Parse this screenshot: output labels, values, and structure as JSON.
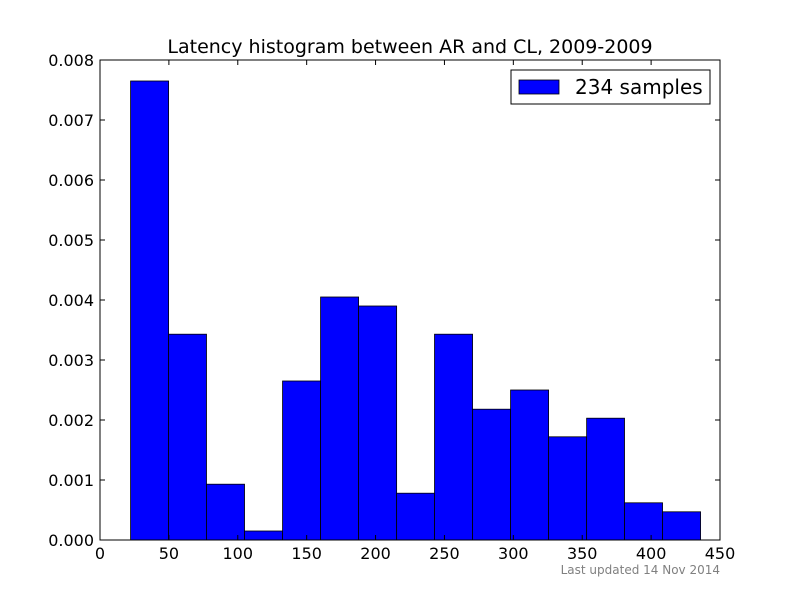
{
  "chart_data": {
    "type": "bar",
    "title": "Latency histogram between AR and CL, 2009-2009",
    "xlabel": "",
    "ylabel": "",
    "xlim": [
      0,
      450
    ],
    "ylim": [
      0,
      0.008
    ],
    "x_ticks": [
      "0",
      "50",
      "100",
      "150",
      "200",
      "250",
      "300",
      "350",
      "400",
      "450"
    ],
    "y_ticks": [
      "0.000",
      "0.001",
      "0.002",
      "0.003",
      "0.004",
      "0.005",
      "0.006",
      "0.007",
      "0.008"
    ],
    "bins": [
      {
        "start": 22.2,
        "end": 49.8,
        "value": 0.00765
      },
      {
        "start": 49.8,
        "end": 77.3,
        "value": 0.00343
      },
      {
        "start": 77.3,
        "end": 104.9,
        "value": 0.00093
      },
      {
        "start": 104.9,
        "end": 132.5,
        "value": 0.00015
      },
      {
        "start": 132.5,
        "end": 160.1,
        "value": 0.00265
      },
      {
        "start": 160.1,
        "end": 187.7,
        "value": 0.00405
      },
      {
        "start": 187.7,
        "end": 215.3,
        "value": 0.0039
      },
      {
        "start": 215.3,
        "end": 242.8,
        "value": 0.00078
      },
      {
        "start": 242.8,
        "end": 270.4,
        "value": 0.00343
      },
      {
        "start": 270.4,
        "end": 298.0,
        "value": 0.00218
      },
      {
        "start": 298.0,
        "end": 325.6,
        "value": 0.0025
      },
      {
        "start": 325.6,
        "end": 353.2,
        "value": 0.00172
      },
      {
        "start": 353.2,
        "end": 380.7,
        "value": 0.00203
      },
      {
        "start": 380.7,
        "end": 408.3,
        "value": 0.00062
      },
      {
        "start": 408.3,
        "end": 435.9,
        "value": 0.00047
      }
    ],
    "bar_color": "#0000ff",
    "legend": {
      "label": "234 samples",
      "position": "top-right"
    },
    "grid": false
  },
  "footer": {
    "text": "Last updated 14 Nov 2014"
  }
}
